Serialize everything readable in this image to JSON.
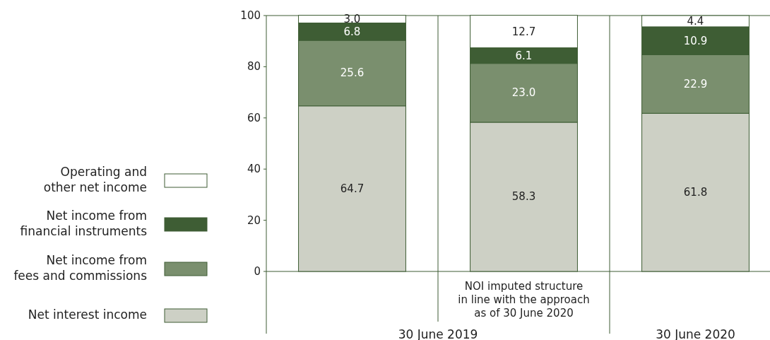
{
  "chart_data": {
    "type": "bar",
    "stacked": true,
    "categories": [
      null,
      "NOI imputed structure\nin line with the approach\nas of 30 June 2020",
      null
    ],
    "series": [
      {
        "name": "Net interest income",
        "color": "#cdd0c5",
        "values": [
          64.7,
          58.3,
          61.8
        ],
        "value_labels": [
          "64.7",
          "58.3",
          "61.8"
        ]
      },
      {
        "name": "Net income from\nfees and commissions",
        "color": "#7a8f6e",
        "values": [
          25.6,
          23.0,
          22.9
        ],
        "value_labels": [
          "25.6",
          "23.0",
          "22.9"
        ]
      },
      {
        "name": "Net income from\nfinancial instruments",
        "color": "#3e5d34",
        "values": [
          6.8,
          6.1,
          10.9
        ],
        "value_labels": [
          "6.8",
          "6.1",
          "10.9"
        ]
      },
      {
        "name": "Operating and\nother net income",
        "color": "#ffffff",
        "values": [
          3.0,
          12.7,
          4.4
        ],
        "value_labels": [
          "3.0",
          "12.7",
          "4.4"
        ]
      }
    ],
    "ylim": [
      0,
      100
    ],
    "yticks": [
      0,
      20,
      40,
      60,
      80,
      100
    ],
    "legend": "left",
    "grid": false,
    "annotations": [
      "30 June 2019",
      "30 June 2020"
    ]
  }
}
